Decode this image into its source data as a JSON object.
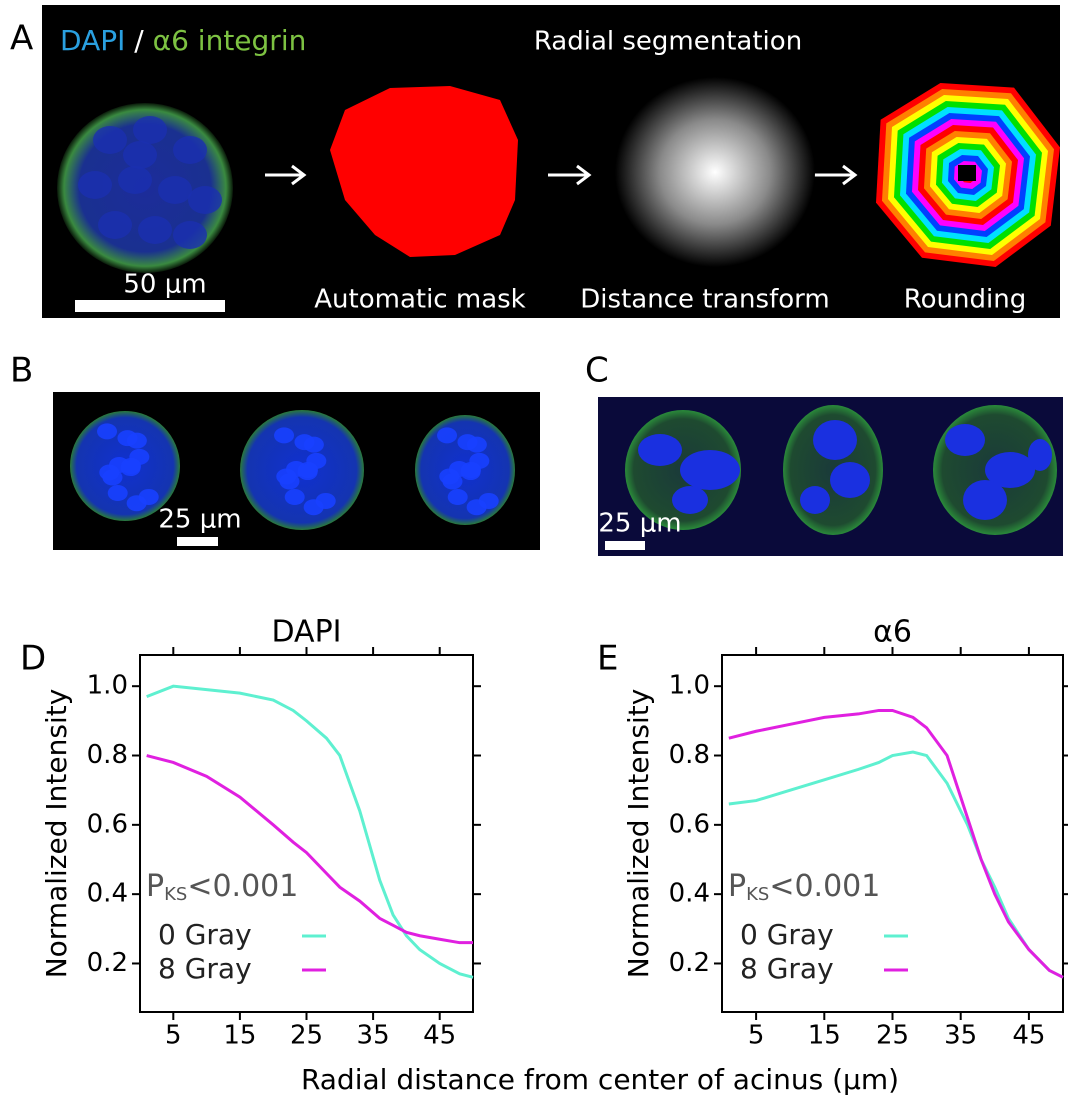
{
  "panels": {
    "A": {
      "label": "A",
      "title_parts": [
        "DAPI",
        "/",
        "α6 integrin"
      ],
      "heading": "Radial segmentation",
      "scale_bar": "50 μm",
      "steps": [
        "Automatic mask",
        "Distance transform",
        "Rounding"
      ]
    },
    "B": {
      "label": "B",
      "scale_bar": "25 μm"
    },
    "C": {
      "label": "C",
      "scale_bar": "25 μm"
    }
  },
  "xlabel": "Radial distance from center of acinus (μm)",
  "chart_data": [
    {
      "type": "line",
      "panel_label": "D",
      "title": "DAPI",
      "ylabel": "Normalized Intensity",
      "x": [
        1,
        5,
        10,
        15,
        20,
        23,
        25,
        28,
        30,
        33,
        36,
        38,
        40,
        42,
        45,
        48,
        50
      ],
      "series": [
        {
          "name": "0 Gray",
          "color": "#5ef0d0",
          "values": [
            0.97,
            1.0,
            0.99,
            0.98,
            0.96,
            0.93,
            0.9,
            0.85,
            0.8,
            0.64,
            0.44,
            0.34,
            0.28,
            0.24,
            0.2,
            0.17,
            0.16
          ]
        },
        {
          "name": "8 Gray",
          "color": "#e020e0",
          "values": [
            0.8,
            0.78,
            0.74,
            0.68,
            0.6,
            0.55,
            0.52,
            0.46,
            0.42,
            0.38,
            0.33,
            0.31,
            0.29,
            0.28,
            0.27,
            0.26,
            0.26
          ]
        }
      ],
      "xlim": [
        0,
        50
      ],
      "xticks": [
        5,
        15,
        25,
        35,
        45
      ],
      "ylim": [
        0.06,
        1.09
      ],
      "yticks": [
        0.2,
        0.4,
        0.6,
        0.8,
        {
          "value": 1,
          "label": "1.0"
        }
      ],
      "annotation": {
        "text": "P",
        "subscript": "KS",
        "suffix": "<0.001"
      }
    },
    {
      "type": "line",
      "panel_label": "E",
      "title": "α6",
      "ylabel": "Normalized Intensity",
      "x": [
        1,
        5,
        10,
        15,
        20,
        23,
        25,
        28,
        30,
        33,
        36,
        38,
        40,
        42,
        45,
        48,
        50
      ],
      "series": [
        {
          "name": "0 Gray",
          "color": "#5ef0d0",
          "values": [
            0.66,
            0.67,
            0.7,
            0.73,
            0.76,
            0.78,
            0.8,
            0.81,
            0.8,
            0.72,
            0.6,
            0.5,
            0.42,
            0.33,
            0.24,
            0.18,
            0.16
          ]
        },
        {
          "name": "8 Gray",
          "color": "#e020e0",
          "values": [
            0.85,
            0.87,
            0.89,
            0.91,
            0.92,
            0.93,
            0.93,
            0.91,
            0.88,
            0.8,
            0.62,
            0.5,
            0.4,
            0.32,
            0.24,
            0.18,
            0.16
          ]
        }
      ],
      "xlim": [
        0,
        50
      ],
      "xticks": [
        5,
        15,
        25,
        35,
        45
      ],
      "ylim": [
        0.06,
        1.09
      ],
      "yticks": [
        0.2,
        0.4,
        0.6,
        0.8,
        {
          "value": 1,
          "label": "1.0"
        }
      ],
      "annotation": {
        "text": "P",
        "subscript": "KS",
        "suffix": "<0.001"
      }
    }
  ]
}
